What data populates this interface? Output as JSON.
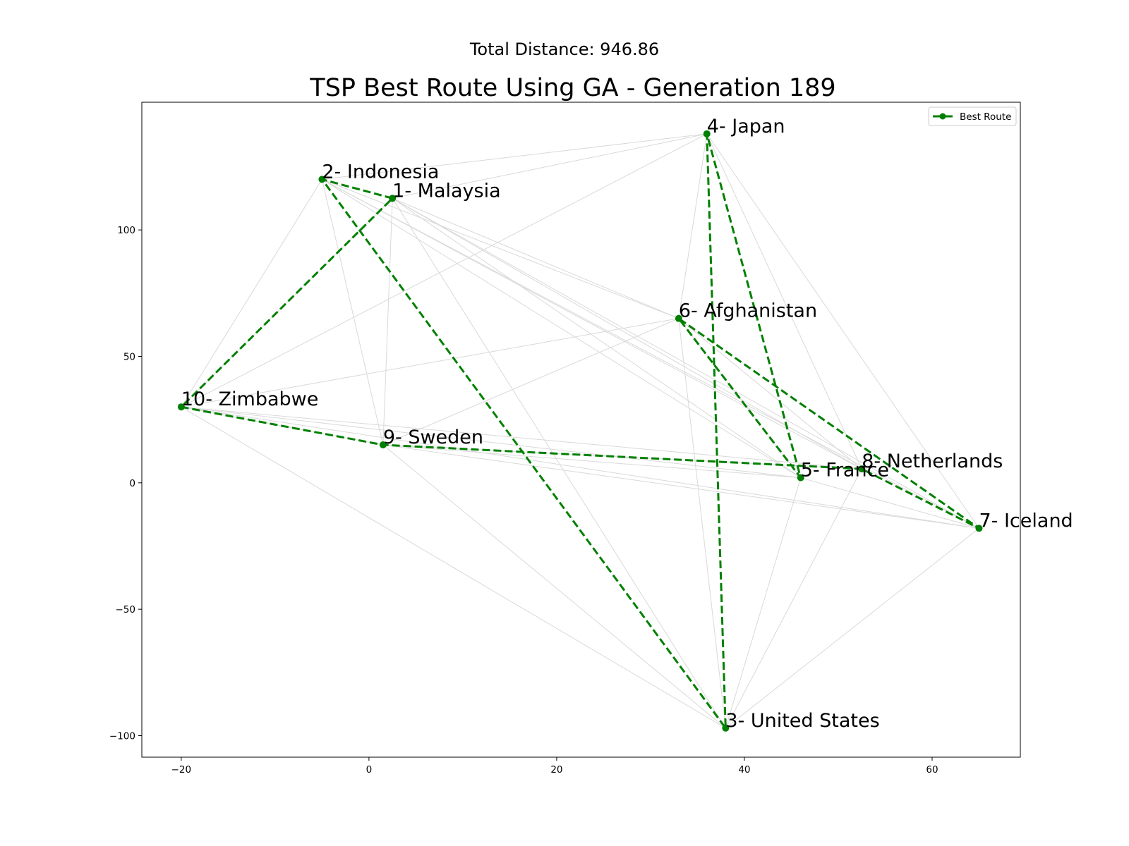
{
  "chart_data": {
    "type": "line",
    "suptitle": "Total Distance: 946.86",
    "title": "TSP Best Route Using GA - Generation 189",
    "xlabel": "",
    "ylabel": "",
    "xlim": [
      -24.2,
      69.4
    ],
    "ylim": [
      -108.5,
      150.5
    ],
    "xticks": [
      -20,
      0,
      20,
      40,
      60
    ],
    "yticks": [
      -100,
      -50,
      0,
      50,
      100
    ],
    "xtick_labels": [
      "−20",
      "0",
      "20",
      "40",
      "60"
    ],
    "ytick_labels": [
      "−100",
      "−50",
      "0",
      "50",
      "100"
    ],
    "grid": false,
    "legend": {
      "placement": "top-right",
      "entries": [
        {
          "label": "Best Route",
          "color": "#008000",
          "style": "dashed-with-markers"
        }
      ]
    },
    "cities": [
      {
        "id": 1,
        "label": "1- Malaysia",
        "x": 2.5,
        "y": 112.5
      },
      {
        "id": 2,
        "label": "2- Indonesia",
        "x": -5.0,
        "y": 120.0
      },
      {
        "id": 3,
        "label": "3- United States",
        "x": 38.0,
        "y": -97.0
      },
      {
        "id": 4,
        "label": "4- Japan",
        "x": 36.0,
        "y": 138.0
      },
      {
        "id": 5,
        "label": "5- France",
        "x": 46.0,
        "y": 2.0
      },
      {
        "id": 6,
        "label": "6- Afghanistan",
        "x": 33.0,
        "y": 65.0
      },
      {
        "id": 7,
        "label": "7- Iceland",
        "x": 65.0,
        "y": -18.0
      },
      {
        "id": 8,
        "label": "8- Netherlands",
        "x": 52.5,
        "y": 5.5
      },
      {
        "id": 9,
        "label": "9- Sweden",
        "x": 1.5,
        "y": 15.0
      },
      {
        "id": 10,
        "label": "10- Zimbabwe",
        "x": -20.0,
        "y": 30.0
      }
    ],
    "series": [
      {
        "name": "Best Route",
        "route": [
          1,
          2,
          3,
          4,
          5,
          6,
          7,
          8,
          9,
          10,
          1
        ]
      }
    ],
    "background_edges": [
      [
        1,
        10
      ],
      [
        1,
        9
      ],
      [
        1,
        4
      ],
      [
        1,
        6
      ],
      [
        1,
        5
      ],
      [
        1,
        8
      ],
      [
        1,
        7
      ],
      [
        1,
        3
      ],
      [
        2,
        10
      ],
      [
        2,
        9
      ],
      [
        2,
        4
      ],
      [
        2,
        6
      ],
      [
        2,
        5
      ],
      [
        2,
        8
      ],
      [
        2,
        7
      ],
      [
        10,
        6
      ],
      [
        10,
        4
      ],
      [
        10,
        9
      ],
      [
        10,
        5
      ],
      [
        10,
        8
      ],
      [
        10,
        7
      ],
      [
        10,
        3
      ],
      [
        9,
        6
      ],
      [
        9,
        5
      ],
      [
        9,
        8
      ],
      [
        9,
        7
      ],
      [
        9,
        3
      ],
      [
        4,
        6
      ],
      [
        4,
        8
      ],
      [
        4,
        7
      ],
      [
        6,
        3
      ],
      [
        6,
        8
      ],
      [
        6,
        5
      ],
      [
        5,
        3
      ],
      [
        5,
        7
      ],
      [
        8,
        3
      ],
      [
        7,
        3
      ]
    ],
    "colors": {
      "route": "#008000",
      "background_edges": "#d9d9d9",
      "axes": "#000000"
    }
  }
}
